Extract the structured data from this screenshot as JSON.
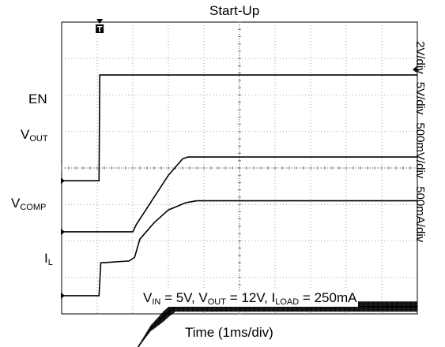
{
  "chart_data": {
    "type": "line",
    "title": "Start-Up",
    "xlabel": "Time (1ms/div)",
    "x_divisions": 10,
    "y_divisions": 8,
    "grid": true,
    "trigger_marker": "T",
    "channel_scales": [
      "2V/div",
      "5V/div",
      "500mV/div",
      "500mA/div"
    ],
    "conditions": {
      "vin": {
        "label": "V",
        "sub": "IN",
        "value": " = 5V, "
      },
      "vout": {
        "label": "V",
        "sub": "OUT",
        "value": " = 12V, "
      },
      "iload": {
        "label": "I",
        "sub": "LOAD",
        "value": " = 250mA"
      }
    },
    "series": [
      {
        "label": "EN",
        "sub": "",
        "ground_div": 4.35,
        "color": "#000000",
        "points": [
          [
            0,
            0
          ],
          [
            1.05,
            0
          ],
          [
            1.07,
            2.9
          ],
          [
            10,
            2.9
          ]
        ]
      },
      {
        "label": "V",
        "sub": "OUT",
        "ground_div": 5.75,
        "color": "#000000",
        "points": [
          [
            0,
            0
          ],
          [
            2.0,
            0
          ],
          [
            2.1,
            0.2
          ],
          [
            2.5,
            0.8
          ],
          [
            3.0,
            1.55
          ],
          [
            3.4,
            2.0
          ],
          [
            3.55,
            2.05
          ],
          [
            10,
            2.05
          ]
        ]
      },
      {
        "label": "V",
        "sub": "COMP",
        "ground_div": 7.5,
        "color": "#000000",
        "points": [
          [
            0,
            0
          ],
          [
            1.05,
            0
          ],
          [
            1.1,
            0.9
          ],
          [
            1.9,
            0.95
          ],
          [
            2.05,
            1.05
          ],
          [
            2.2,
            1.55
          ],
          [
            2.6,
            2.0
          ],
          [
            3.0,
            2.35
          ],
          [
            3.5,
            2.55
          ],
          [
            3.8,
            2.6
          ],
          [
            10,
            2.6
          ]
        ]
      },
      {
        "label": "I",
        "sub": "L",
        "ground_div": 9.15,
        "color": "#000000",
        "points": [
          [
            0,
            0
          ],
          [
            2.0,
            0
          ],
          [
            2.05,
            0.1
          ],
          [
            2.5,
            0.75
          ],
          [
            3.0,
            1.2
          ],
          [
            3.2,
            1.35
          ],
          [
            10,
            1.35
          ]
        ],
        "ripple_after": 2.05
      }
    ]
  }
}
